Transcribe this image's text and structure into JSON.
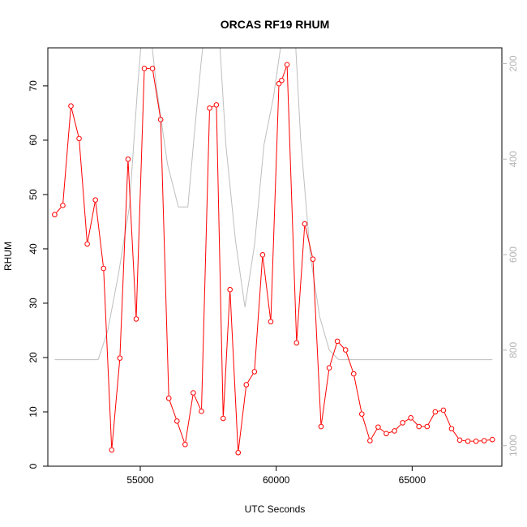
{
  "chart_data": {
    "type": "line",
    "title": "ORCAS RF19 RHUM",
    "xlabel": "UTC Seconds",
    "ylabel": "RHUM",
    "xlim": [
      51600,
      68300
    ],
    "ylim": [
      0,
      77
    ],
    "x_ticks": [
      55000,
      60000,
      65000
    ],
    "x_tick_labels": [
      "55000",
      "60000",
      "65000"
    ],
    "y_ticks": [
      0,
      10,
      20,
      30,
      40,
      50,
      60,
      70
    ],
    "y_tick_labels": [
      "0",
      "10",
      "20",
      "30",
      "40",
      "50",
      "60",
      "70"
    ],
    "y2_lim": [
      1043,
      167
    ],
    "y2_ticks": [
      200,
      400,
      600,
      800,
      1000
    ],
    "y2_tick_labels": [
      "200",
      "400",
      "600",
      "800",
      "1000"
    ],
    "grid": false,
    "series": [
      {
        "role": "rhum",
        "color": "#ff0000",
        "marker": "open-circle",
        "x": [
          51850,
          52150,
          52450,
          52750,
          53050,
          53350,
          53650,
          53950,
          54250,
          54550,
          54850,
          55150,
          55450,
          55750,
          56050,
          56350,
          56650,
          56950,
          57250,
          57550,
          57800,
          58050,
          58300,
          58600,
          58900,
          59200,
          59500,
          59800,
          60100,
          60200,
          60400,
          60750,
          61050,
          61350,
          61650,
          61950,
          62250,
          62550,
          62850,
          63150,
          63450,
          63750,
          64050,
          64350,
          64650,
          64950,
          65250,
          65550,
          65850,
          66150,
          66450,
          66750,
          67050,
          67350,
          67650,
          67950
        ],
        "y": [
          46.3,
          48.0,
          66.3,
          60.3,
          40.9,
          49.0,
          36.4,
          3.0,
          19.9,
          56.5,
          27.1,
          73.2,
          73.2,
          63.8,
          12.5,
          8.3,
          4.0,
          13.5,
          10.1,
          65.9,
          66.5,
          8.8,
          32.5,
          2.5,
          15.0,
          17.4,
          38.9,
          26.6,
          70.4,
          71.0,
          73.9,
          22.7,
          44.6,
          38.1,
          7.3,
          18.1,
          23.0,
          21.4,
          17.0,
          9.6,
          4.7,
          7.2,
          6.0,
          6.5,
          8.0,
          8.9,
          7.3,
          7.3,
          10.0,
          10.3,
          6.9,
          4.8,
          4.6,
          4.6,
          4.7,
          4.9
        ]
      },
      {
        "role": "pressure",
        "axis": "right",
        "color": "#bebebe",
        "x": [
          51850,
          52250,
          52650,
          53050,
          53450,
          53800,
          54200,
          54600,
          54900,
          55200,
          55600,
          56000,
          56400,
          56750,
          57000,
          57250,
          57550,
          57850,
          58150,
          58500,
          58850,
          59200,
          59550,
          59900,
          60250,
          60600,
          60900,
          61250,
          61600,
          61950,
          62300,
          62700,
          63100,
          63600,
          64200,
          64800,
          65400,
          66000,
          66600,
          67200,
          67950
        ],
        "y": [
          820,
          820,
          820,
          820,
          820,
          760,
          640,
          500,
          250,
          40,
          250,
          410,
          500,
          500,
          340,
          190,
          40,
          90,
          370,
          570,
          710,
          580,
          370,
          270,
          130,
          40,
          360,
          600,
          730,
          800,
          820,
          820,
          820,
          820,
          820,
          820,
          820,
          820,
          820,
          820,
          820
        ]
      }
    ]
  }
}
